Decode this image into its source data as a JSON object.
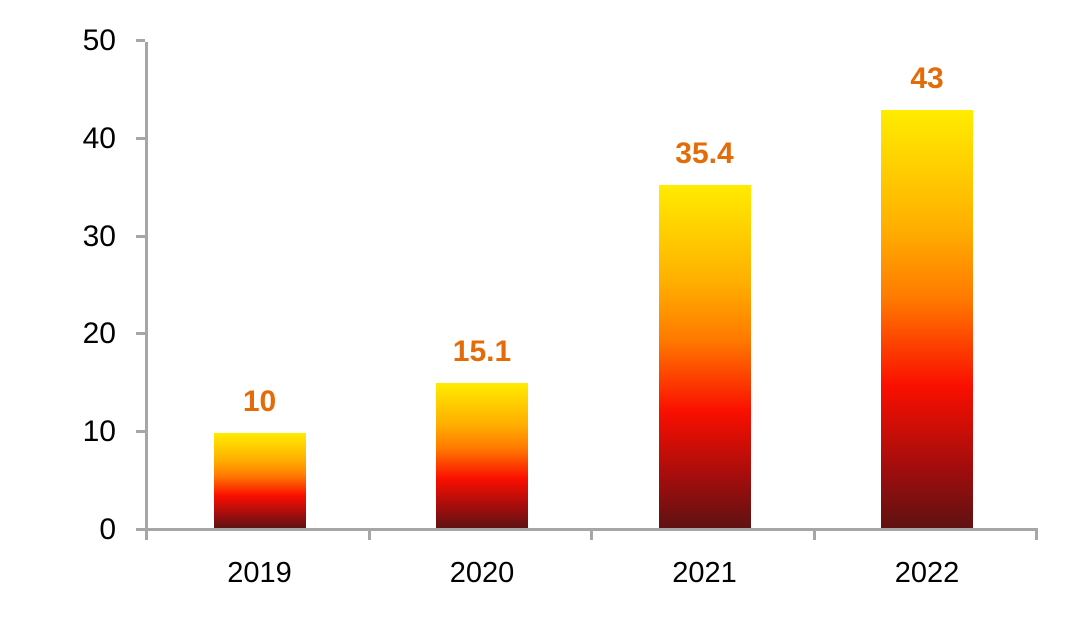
{
  "chart_data": {
    "type": "bar",
    "categories": [
      "2019",
      "2020",
      "2021",
      "2022"
    ],
    "values": [
      10,
      15.1,
      35.4,
      43
    ],
    "value_labels": [
      "10",
      "15.1",
      "35.4",
      "43"
    ],
    "y_ticks": [
      0,
      10,
      20,
      30,
      40,
      50
    ],
    "ylim": [
      0,
      50
    ],
    "title": "",
    "xlabel": "",
    "ylabel": "",
    "grid": false,
    "legend": false,
    "colors": {
      "bar_gradient_top_to_bottom": [
        "#FFEC00",
        "#FFB000",
        "#FF7A00",
        "#FA0F00",
        "#A00D0D",
        "#5F1212"
      ],
      "value_label": "#E36C09",
      "axis_line": "#A6A6A6",
      "tick_text": "#000000",
      "background": "#FFFFFF"
    }
  }
}
